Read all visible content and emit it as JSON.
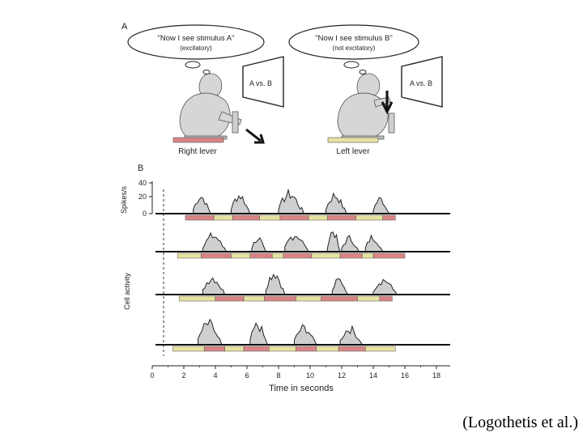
{
  "panel_a": {
    "label": "A",
    "left": {
      "thought": "\"Now I see stimulus A\"",
      "thought_sub": "(excitatory)",
      "screen": "A vs. B",
      "lever": "Right lever",
      "lever_color": "#d98585"
    },
    "right": {
      "thought": "\"Now I see stimulus B\"",
      "thought_sub": "(not excitatory)",
      "screen": "A vs. B",
      "lever": "Left lever",
      "lever_color": "#e6e2a0"
    }
  },
  "panel_b": {
    "label": "B",
    "ylabel_top": "Spikes/s",
    "ylabel_rows": "Cell activity",
    "y_ticks": [
      "40",
      "20",
      "0"
    ],
    "xlabel": "Time in seconds",
    "x_ticks": [
      "0",
      "2",
      "4",
      "6",
      "8",
      "10",
      "12",
      "14",
      "16",
      "18"
    ],
    "colors": {
      "stimulus_a": "#d98585",
      "stimulus_b": "#e6e2a0",
      "activity": "#cfcfcf"
    }
  },
  "citation": "(Logothetis et al.)",
  "chart_data": {
    "type": "area",
    "title": "",
    "xlabel": "Time in seconds",
    "ylabel": "Spikes/s",
    "xlim": [
      0,
      19
    ],
    "ylim": [
      0,
      40
    ],
    "trials": [
      {
        "bursts": [
          [
            2.6,
            3.7,
            28
          ],
          [
            5.0,
            6.2,
            30
          ],
          [
            8.0,
            9.6,
            32
          ],
          [
            11.0,
            12.3,
            30
          ],
          [
            14.0,
            15.0,
            24
          ]
        ],
        "bar_start": 2.1,
        "segments": [
          [
            "A",
            2.1,
            3.9
          ],
          [
            "B",
            3.9,
            5.1
          ],
          [
            "A",
            5.1,
            6.8
          ],
          [
            "B",
            6.8,
            8.1
          ],
          [
            "A",
            8.1,
            9.9
          ],
          [
            "B",
            9.9,
            11.1
          ],
          [
            "A",
            11.1,
            12.9
          ],
          [
            "B",
            12.9,
            14.6
          ],
          [
            "A",
            14.6,
            15.4
          ]
        ]
      },
      {
        "bursts": [
          [
            3.2,
            4.7,
            26
          ],
          [
            6.3,
            7.2,
            22
          ],
          [
            8.4,
            9.9,
            28
          ],
          [
            11.1,
            11.9,
            34
          ],
          [
            12.0,
            13.1,
            22
          ],
          [
            13.5,
            14.6,
            24
          ]
        ],
        "bar_start": 1.6,
        "segments": [
          [
            "B",
            1.6,
            3.1
          ],
          [
            "A",
            3.1,
            5.0
          ],
          [
            "B",
            5.0,
            6.2
          ],
          [
            "A",
            6.2,
            7.6
          ],
          [
            "B",
            7.6,
            8.3
          ],
          [
            "A",
            8.3,
            10.1
          ],
          [
            "B",
            10.1,
            11.9
          ],
          [
            "A",
            11.9,
            13.3
          ],
          [
            "B",
            13.3,
            14.0
          ],
          [
            "A",
            14.0,
            16.0
          ]
        ]
      },
      {
        "bursts": [
          [
            3.2,
            4.6,
            28
          ],
          [
            7.2,
            8.4,
            36
          ],
          [
            11.4,
            12.4,
            24
          ],
          [
            14.0,
            15.5,
            24
          ]
        ],
        "bar_start": 1.7,
        "segments": [
          [
            "B",
            1.7,
            4.0
          ],
          [
            "A",
            4.0,
            5.8
          ],
          [
            "B",
            5.8,
            7.1
          ],
          [
            "A",
            7.1,
            9.1
          ],
          [
            "B",
            9.1,
            10.7
          ],
          [
            "A",
            10.7,
            13.0
          ],
          [
            "B",
            13.0,
            14.4
          ],
          [
            "A",
            14.4,
            15.2
          ]
        ]
      },
      {
        "bursts": [
          [
            2.9,
            4.4,
            34
          ],
          [
            6.2,
            7.3,
            32
          ],
          [
            9.0,
            10.4,
            28
          ],
          [
            11.9,
            13.3,
            26
          ]
        ],
        "bar_start": 1.3,
        "segments": [
          [
            "B",
            1.3,
            3.3
          ],
          [
            "A",
            3.3,
            4.6
          ],
          [
            "B",
            4.6,
            5.8
          ],
          [
            "A",
            5.8,
            7.4
          ],
          [
            "B",
            7.4,
            9.1
          ],
          [
            "A",
            9.1,
            10.4
          ],
          [
            "B",
            10.4,
            11.8
          ],
          [
            "A",
            11.8,
            13.5
          ],
          [
            "B",
            13.5,
            15.4
          ]
        ]
      }
    ]
  }
}
